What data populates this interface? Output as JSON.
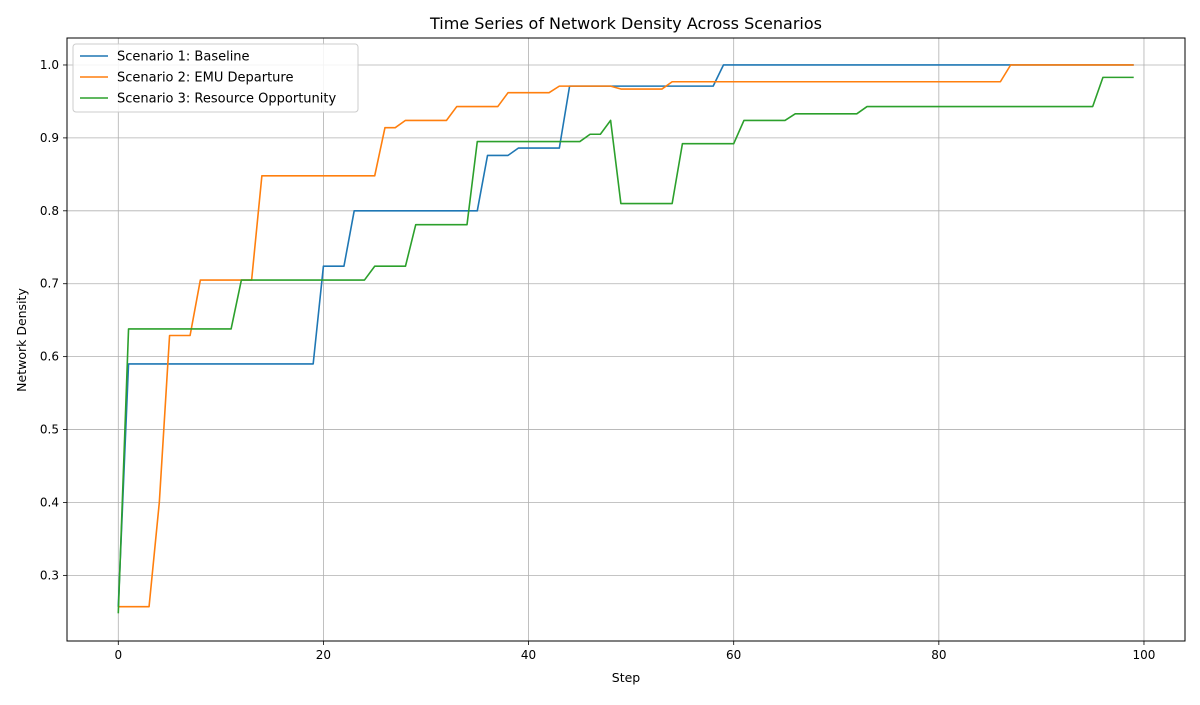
{
  "chart_data": {
    "type": "line",
    "title": "Time Series of Network Density Across Scenarios",
    "xlabel": "Step",
    "ylabel": "Network Density",
    "xlim": [
      -5,
      104
    ],
    "ylim": [
      0.21,
      1.037
    ],
    "xticks": [
      0,
      20,
      40,
      60,
      80,
      100
    ],
    "yticks": [
      0.3,
      0.4,
      0.5,
      0.6,
      0.7,
      0.8,
      0.9,
      1.0
    ],
    "ytick_labels": [
      "0.3",
      "0.4",
      "0.5",
      "0.6",
      "0.7",
      "0.8",
      "0.9",
      "1.0"
    ],
    "grid": true,
    "legend_position": "top-left",
    "series": [
      {
        "name": "Scenario 1: Baseline",
        "color": "#1f77b4",
        "points": [
          [
            0,
            0.257
          ],
          [
            1,
            0.59
          ],
          [
            19,
            0.59
          ],
          [
            20,
            0.724
          ],
          [
            22,
            0.724
          ],
          [
            23,
            0.8
          ],
          [
            35,
            0.8
          ],
          [
            36,
            0.876
          ],
          [
            38,
            0.876
          ],
          [
            39,
            0.886
          ],
          [
            43,
            0.886
          ],
          [
            44,
            0.971
          ],
          [
            58,
            0.971
          ],
          [
            59,
            1.0
          ],
          [
            99,
            1.0
          ]
        ]
      },
      {
        "name": "Scenario 2: EMU Departure",
        "color": "#ff7f0e",
        "points": [
          [
            0,
            0.257
          ],
          [
            3,
            0.257
          ],
          [
            4,
            0.4
          ],
          [
            5,
            0.629
          ],
          [
            7,
            0.629
          ],
          [
            8,
            0.705
          ],
          [
            13,
            0.705
          ],
          [
            14,
            0.848
          ],
          [
            25,
            0.848
          ],
          [
            26,
            0.914
          ],
          [
            27,
            0.914
          ],
          [
            28,
            0.924
          ],
          [
            32,
            0.924
          ],
          [
            33,
            0.943
          ],
          [
            37,
            0.943
          ],
          [
            38,
            0.962
          ],
          [
            42,
            0.962
          ],
          [
            43,
            0.971
          ],
          [
            48,
            0.971
          ],
          [
            49,
            0.967
          ],
          [
            53,
            0.967
          ],
          [
            54,
            0.977
          ],
          [
            86,
            0.977
          ],
          [
            87,
            1.0
          ],
          [
            99,
            1.0
          ]
        ]
      },
      {
        "name": "Scenario 3: Resource Opportunity",
        "color": "#2ca02c",
        "points": [
          [
            0,
            0.248
          ],
          [
            1,
            0.638
          ],
          [
            11,
            0.638
          ],
          [
            12,
            0.705
          ],
          [
            24,
            0.705
          ],
          [
            25,
            0.724
          ],
          [
            28,
            0.724
          ],
          [
            29,
            0.781
          ],
          [
            34,
            0.781
          ],
          [
            35,
            0.895
          ],
          [
            45,
            0.895
          ],
          [
            46,
            0.905
          ],
          [
            47,
            0.905
          ],
          [
            48,
            0.924
          ],
          [
            49,
            0.81
          ],
          [
            54,
            0.81
          ],
          [
            55,
            0.892
          ],
          [
            60,
            0.892
          ],
          [
            61,
            0.924
          ],
          [
            65,
            0.924
          ],
          [
            66,
            0.933
          ],
          [
            72,
            0.933
          ],
          [
            73,
            0.943
          ],
          [
            95,
            0.943
          ],
          [
            96,
            0.983
          ],
          [
            99,
            0.983
          ]
        ]
      }
    ]
  }
}
